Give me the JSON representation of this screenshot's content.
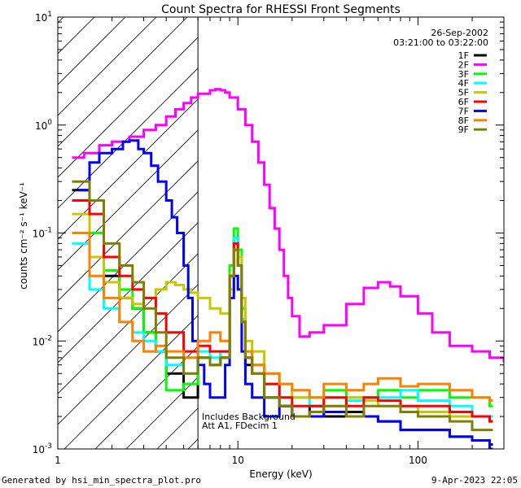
{
  "chart_data": {
    "type": "line",
    "title": "Count Spectra for RHESSI Front Segments",
    "xlabel": "Energy (keV)",
    "ylabel": "counts cm⁻² s⁻¹ keV⁻¹",
    "x_scale": "log",
    "y_scale": "log",
    "xlim": [
      1,
      300
    ],
    "ylim": [
      0.001,
      10
    ],
    "x_tick_labels": [
      {
        "value": 1,
        "label": "1"
      },
      {
        "value": 10,
        "label": "10"
      },
      {
        "value": 100,
        "label": "100"
      }
    ],
    "y_tick_labels": [
      {
        "value": 0.001,
        "base": "10",
        "exp": "-3"
      },
      {
        "value": 0.01,
        "base": "10",
        "exp": "-2"
      },
      {
        "value": 0.1,
        "base": "10",
        "exp": "-1"
      },
      {
        "value": 1,
        "base": "10",
        "exp": "0"
      },
      {
        "value": 10,
        "base": "10",
        "exp": "1"
      }
    ],
    "date": "26-Sep-2002",
    "time_range": "03:21:00 to 03:22:00",
    "hatched_region_max_energy": 6,
    "annotation_lines": [
      "Includes Background",
      "Att A1, FDecim 1"
    ],
    "legend_position": "top-right",
    "series": [
      {
        "name": "1F",
        "color": "#000000",
        "x": [
          1.2,
          1.5,
          1.8,
          2.2,
          2.6,
          3.0,
          3.5,
          4.0,
          5.0,
          6.0,
          7.0,
          8.0,
          9.0,
          9.5,
          10.0,
          10.5,
          11.0,
          12.0,
          14.0,
          17.0,
          20.0,
          25.0,
          30.0,
          40.0,
          50.0,
          60.0,
          80.0,
          100.0,
          150.0,
          200.0,
          250.0
        ],
        "y": [
          0.25,
          0.1,
          0.04,
          0.025,
          0.02,
          0.012,
          0.008,
          0.005,
          0.003,
          0.007,
          0.006,
          0.007,
          0.04,
          0.09,
          0.05,
          0.015,
          0.006,
          0.006,
          0.003,
          0.0025,
          0.002,
          0.0025,
          0.002,
          0.0022,
          0.002,
          0.0018,
          0.0015,
          0.0015,
          0.0013,
          0.0012,
          0.0011
        ]
      },
      {
        "name": "2F",
        "color": "#ff00ff",
        "x": [
          1.2,
          1.4,
          1.7,
          2.0,
          2.5,
          3.0,
          3.5,
          4.0,
          4.5,
          5.0,
          5.5,
          6.0,
          7.0,
          7.5,
          8.0,
          8.5,
          9.0,
          10.0,
          11.0,
          12.0,
          13.0,
          14.0,
          15.0,
          16.0,
          17.0,
          18.0,
          19.0,
          20.0,
          22.0,
          25.0,
          30.0,
          40.0,
          50.0,
          60.0,
          70.0,
          80.0,
          100.0,
          120.0,
          150.0,
          200.0,
          250.0,
          300.0
        ],
        "y": [
          0.5,
          0.55,
          0.65,
          0.7,
          0.78,
          0.9,
          1.0,
          1.2,
          1.4,
          1.6,
          1.8,
          1.95,
          2.1,
          2.15,
          2.1,
          2.0,
          1.8,
          1.4,
          1.0,
          0.7,
          0.45,
          0.28,
          0.17,
          0.11,
          0.07,
          0.04,
          0.025,
          0.017,
          0.011,
          0.012,
          0.014,
          0.022,
          0.031,
          0.035,
          0.032,
          0.026,
          0.018,
          0.012,
          0.009,
          0.008,
          0.007,
          0.0065
        ]
      },
      {
        "name": "3F",
        "color": "#00ff00",
        "x": [
          1.2,
          1.5,
          1.8,
          2.2,
          2.6,
          3.0,
          3.5,
          4.0,
          5.0,
          6.0,
          7.0,
          8.0,
          9.0,
          9.5,
          10.0,
          10.5,
          11.0,
          12.0,
          14.0,
          17.0,
          20.0,
          25.0,
          30.0,
          40.0,
          50.0,
          60.0,
          80.0,
          100.0,
          150.0,
          200.0,
          250.0
        ],
        "y": [
          0.2,
          0.1,
          0.045,
          0.03,
          0.02,
          0.012,
          0.008,
          0.0035,
          0.004,
          0.007,
          0.006,
          0.008,
          0.05,
          0.11,
          0.07,
          0.02,
          0.008,
          0.006,
          0.004,
          0.003,
          0.003,
          0.003,
          0.0035,
          0.003,
          0.003,
          0.0035,
          0.003,
          0.0035,
          0.003,
          0.003,
          0.0025
        ]
      },
      {
        "name": "4F",
        "color": "#00ffff",
        "x": [
          1.2,
          1.5,
          1.8,
          2.2,
          2.6,
          3.0,
          3.5,
          4.0,
          5.0,
          6.0,
          7.0,
          8.0,
          9.0,
          9.5,
          10.0,
          10.5,
          11.0,
          12.0,
          14.0,
          17.0,
          20.0,
          25.0,
          30.0,
          40.0,
          50.0,
          60.0,
          80.0,
          100.0,
          150.0,
          200.0,
          250.0
        ],
        "y": [
          0.08,
          0.03,
          0.02,
          0.015,
          0.012,
          0.01,
          0.008,
          0.006,
          0.005,
          0.008,
          0.007,
          0.008,
          0.04,
          0.09,
          0.05,
          0.016,
          0.007,
          0.006,
          0.004,
          0.003,
          0.003,
          0.0025,
          0.003,
          0.0028,
          0.003,
          0.003,
          0.0035,
          0.0028,
          0.0025,
          0.002,
          0.002
        ]
      },
      {
        "name": "5F",
        "color": "#c8c800",
        "x": [
          1.2,
          1.5,
          1.8,
          2.2,
          2.6,
          3.0,
          3.5,
          4.0,
          4.5,
          5.0,
          5.5,
          6.0,
          7.0,
          8.0,
          9.0,
          9.5,
          10.0,
          10.5,
          11.0,
          12.0,
          14.0,
          17.0,
          20.0,
          25.0,
          30.0,
          40.0,
          50.0,
          60.0,
          80.0,
          100.0,
          150.0,
          200.0,
          250.0
        ],
        "y": [
          0.15,
          0.06,
          0.035,
          0.025,
          0.022,
          0.025,
          0.03,
          0.035,
          0.033,
          0.03,
          0.028,
          0.025,
          0.02,
          0.018,
          0.03,
          0.08,
          0.06,
          0.025,
          0.01,
          0.008,
          0.005,
          0.004,
          0.003,
          0.003,
          0.0025,
          0.003,
          0.0028,
          0.0025,
          0.0025,
          0.0022,
          0.002,
          0.002,
          0.0018
        ]
      },
      {
        "name": "6F",
        "color": "#ff0000",
        "x": [
          1.2,
          1.5,
          1.8,
          2.2,
          2.6,
          3.0,
          3.5,
          4.0,
          5.0,
          6.0,
          7.0,
          8.0,
          9.0,
          9.5,
          10.0,
          10.5,
          11.0,
          12.0,
          14.0,
          17.0,
          20.0,
          25.0,
          30.0,
          40.0,
          50.0,
          60.0,
          80.0,
          100.0,
          150.0,
          200.0,
          250.0
        ],
        "y": [
          0.2,
          0.15,
          0.06,
          0.04,
          0.03,
          0.025,
          0.018,
          0.012,
          0.008,
          0.009,
          0.008,
          0.008,
          0.04,
          0.08,
          0.05,
          0.015,
          0.007,
          0.005,
          0.004,
          0.003,
          0.0025,
          0.0025,
          0.003,
          0.0025,
          0.003,
          0.0028,
          0.0025,
          0.0025,
          0.0022,
          0.002,
          0.0018
        ]
      },
      {
        "name": "7F",
        "color": "#0000ff",
        "x": [
          1.3,
          1.5,
          1.7,
          2.0,
          2.3,
          2.5,
          2.8,
          3.0,
          3.3,
          3.6,
          4.0,
          4.3,
          4.6,
          5.0,
          5.3,
          5.6,
          6.0,
          6.5,
          7.0,
          8.0,
          8.5,
          9.0,
          9.5,
          10.0,
          10.5,
          11.0,
          12.0,
          14.0,
          17.0,
          20.0,
          25.0,
          30.0,
          40.0,
          50.0,
          60.0,
          80.0,
          100.0,
          150.0,
          200.0,
          250.0
        ],
        "y": [
          0.25,
          0.45,
          0.55,
          0.6,
          0.7,
          0.72,
          0.6,
          0.55,
          0.42,
          0.3,
          0.2,
          0.14,
          0.1,
          0.05,
          0.025,
          0.01,
          0.006,
          0.004,
          0.003,
          0.003,
          0.006,
          0.025,
          0.04,
          0.03,
          0.008,
          0.004,
          0.003,
          0.002,
          0.0025,
          0.002,
          0.002,
          0.0022,
          0.002,
          0.002,
          0.0018,
          0.0015,
          0.0015,
          0.0013,
          0.0012,
          0.001
        ]
      },
      {
        "name": "8F",
        "color": "#ff8000",
        "x": [
          1.2,
          1.5,
          1.8,
          2.2,
          2.6,
          3.0,
          3.5,
          4.0,
          5.0,
          6.0,
          7.0,
          8.0,
          9.0,
          9.5,
          10.0,
          10.5,
          11.0,
          12.0,
          14.0,
          17.0,
          20.0,
          25.0,
          30.0,
          40.0,
          50.0,
          60.0,
          80.0,
          100.0,
          150.0,
          200.0,
          250.0
        ],
        "y": [
          0.1,
          0.04,
          0.025,
          0.015,
          0.01,
          0.008,
          0.009,
          0.008,
          0.007,
          0.01,
          0.012,
          0.01,
          0.04,
          0.07,
          0.05,
          0.015,
          0.008,
          0.006,
          0.005,
          0.004,
          0.0035,
          0.003,
          0.004,
          0.0035,
          0.004,
          0.0045,
          0.0038,
          0.004,
          0.0035,
          0.003,
          0.0028
        ]
      },
      {
        "name": "9F",
        "color": "#808000",
        "x": [
          1.2,
          1.5,
          1.8,
          2.2,
          2.6,
          3.0,
          3.5,
          4.0,
          5.0,
          6.0,
          7.0,
          8.0,
          9.0,
          9.5,
          10.0,
          10.5,
          11.0,
          12.0,
          14.0,
          17.0,
          20.0,
          25.0,
          30.0,
          40.0,
          50.0,
          60.0,
          80.0,
          100.0,
          150.0,
          200.0,
          250.0
        ],
        "y": [
          0.3,
          0.2,
          0.08,
          0.05,
          0.035,
          0.02,
          0.012,
          0.007,
          0.005,
          0.007,
          0.006,
          0.007,
          0.04,
          0.07,
          0.05,
          0.015,
          0.007,
          0.005,
          0.003,
          0.0025,
          0.002,
          0.0022,
          0.0025,
          0.002,
          0.0025,
          0.0025,
          0.0022,
          0.002,
          0.0018,
          0.0015,
          0.0015
        ]
      }
    ]
  },
  "footer": {
    "left": "Generated by hsi_min_spectra_plot.pro",
    "right": "9-Apr-2023 22:05"
  }
}
